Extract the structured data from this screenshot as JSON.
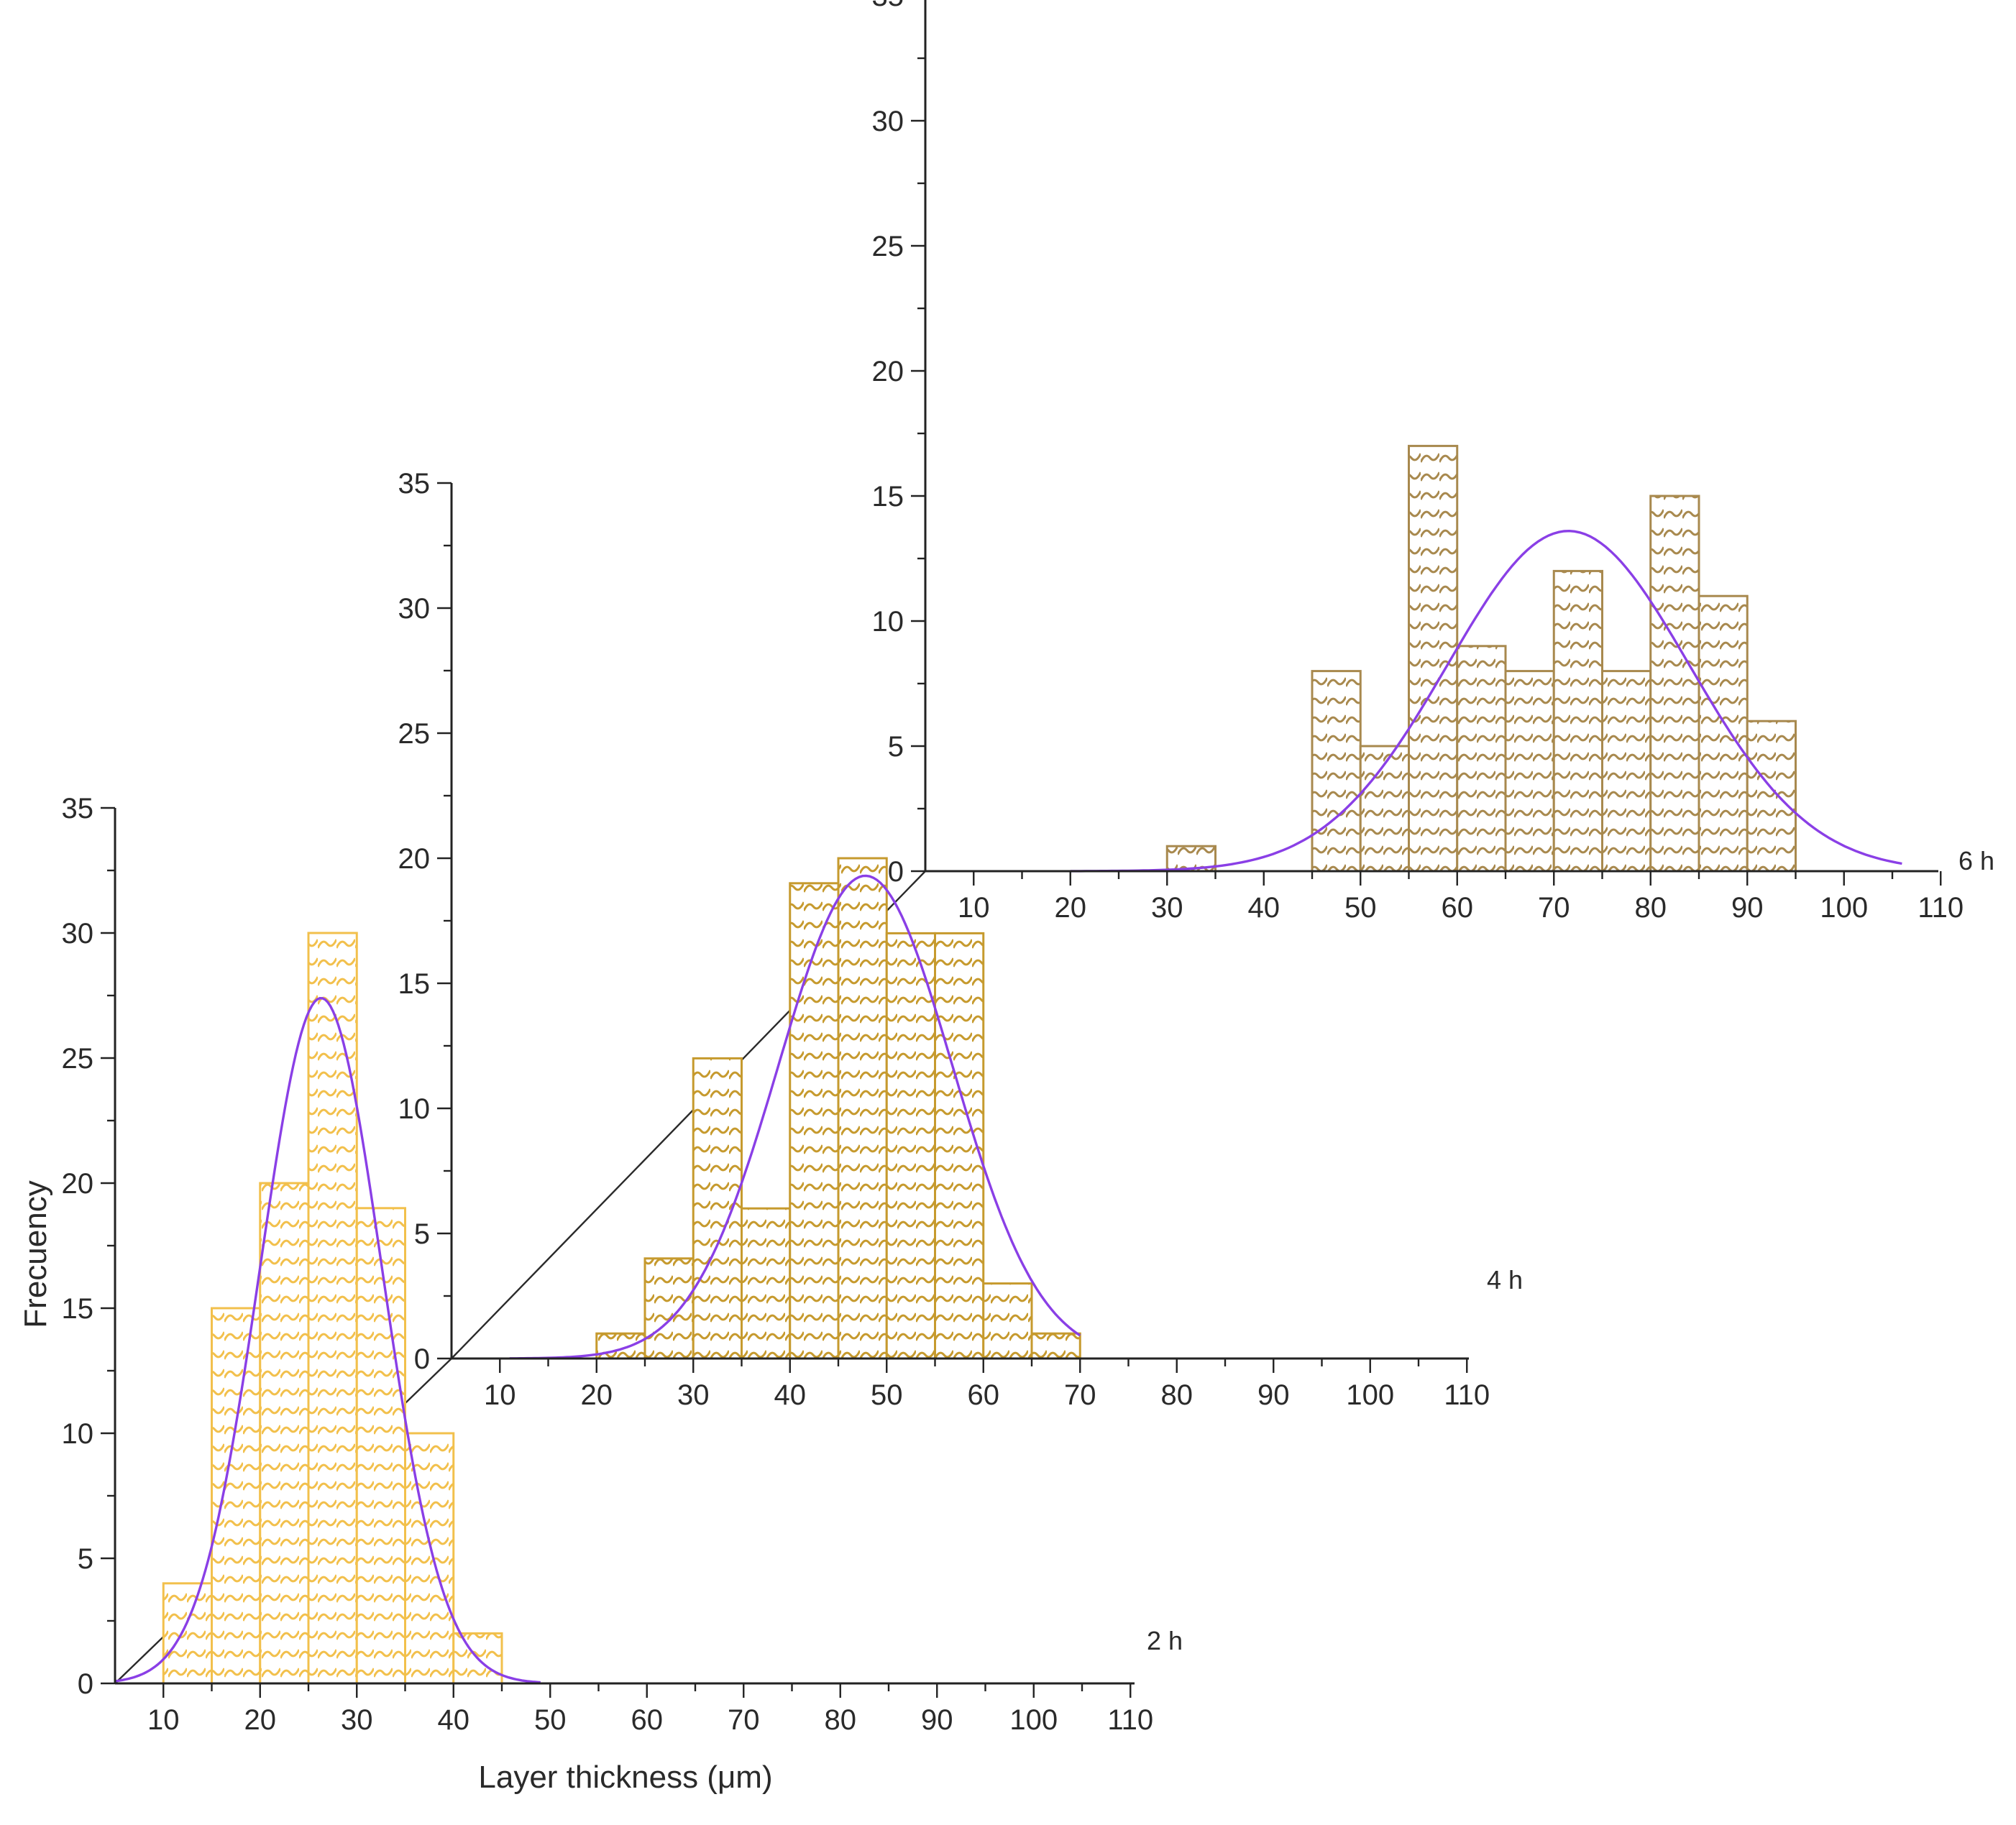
{
  "chart_data": {
    "type": "bar",
    "xlabel": "Layer thickness (μm)",
    "ylabel": "Frecuency",
    "xlim": [
      5,
      110
    ],
    "ylim": [
      0,
      35
    ],
    "xticks": [
      10,
      20,
      30,
      40,
      50,
      60,
      70,
      80,
      90,
      100,
      110
    ],
    "yticks": [
      0,
      5,
      10,
      15,
      20,
      25,
      30,
      35
    ],
    "bin_width": 5,
    "panels": [
      {
        "name": "2 h",
        "bar_color": "#f2c04c",
        "bins": [
          10,
          15,
          20,
          25,
          30,
          35,
          40
        ],
        "values": [
          4,
          15,
          20,
          30,
          19,
          10,
          2
        ],
        "fit": {
          "type": "normal",
          "mean": 26.3,
          "peak": 27.4,
          "sd": 6.3,
          "range": [
            5,
            49
          ]
        }
      },
      {
        "name": "4 h",
        "bar_color": "#c69a2e",
        "bins": [
          20,
          25,
          30,
          35,
          40,
          45,
          50,
          55,
          60,
          65
        ],
        "values": [
          1,
          4,
          12,
          6,
          19,
          20,
          17,
          17,
          3,
          1
        ],
        "fit": {
          "type": "normal",
          "mean": 47.8,
          "peak": 19.3,
          "sd": 9.0,
          "range": [
            11,
            70
          ]
        }
      },
      {
        "name": "6 h",
        "bar_color": "#a8894e",
        "bins": [
          30,
          45,
          50,
          55,
          60,
          65,
          70,
          75,
          80,
          85,
          90
        ],
        "values": [
          1,
          8,
          5,
          17,
          9,
          8,
          12,
          8,
          15,
          11,
          6
        ],
        "fit": {
          "type": "normal",
          "mean": 71.5,
          "peak": 13.6,
          "sd": 12.5,
          "range": [
            20,
            106
          ]
        }
      }
    ],
    "curve_color": "#8a3fe6",
    "connector_color": "#2a2a2a"
  }
}
